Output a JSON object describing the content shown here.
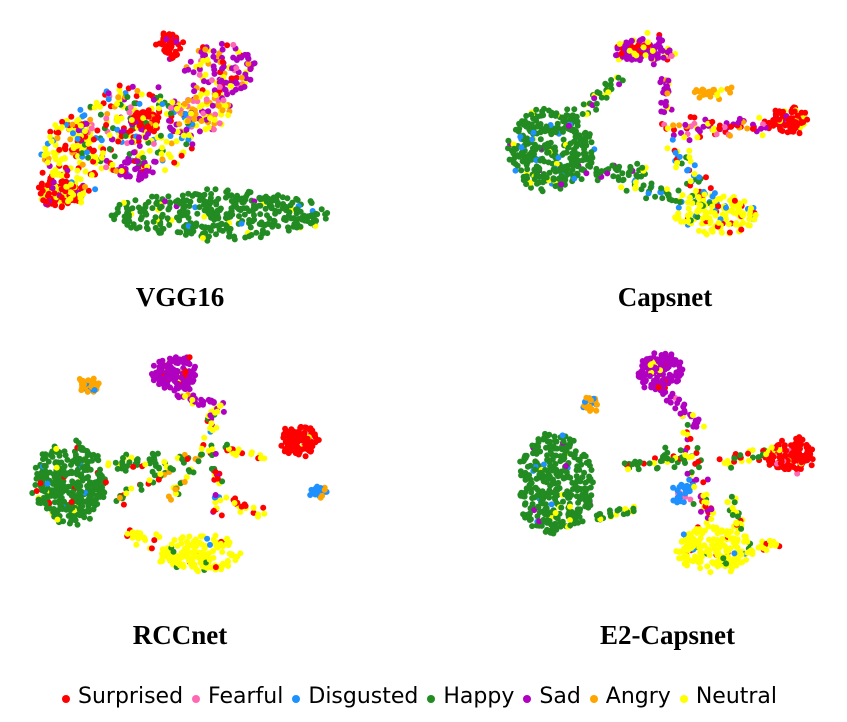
{
  "figure": {
    "panels": [
      {
        "caption": "VGG16"
      },
      {
        "caption": "Capsnet"
      },
      {
        "caption": "RCCnet"
      },
      {
        "caption": "E2-Capsnet"
      }
    ]
  },
  "legend": {
    "items": [
      {
        "label": "Surprised",
        "color": "#ff0000"
      },
      {
        "label": "Fearful",
        "color": "#ff69b4"
      },
      {
        "label": "Disgusted",
        "color": "#1e90ff"
      },
      {
        "label": "Happy",
        "color": "#228b22"
      },
      {
        "label": "Sad",
        "color": "#b000c0"
      },
      {
        "label": "Angry",
        "color": "#ffa500"
      },
      {
        "label": "Neutral",
        "color": "#ffff00"
      }
    ]
  },
  "chart_data": [
    {
      "type": "scatter",
      "title": "VGG16",
      "series": [
        {
          "name": "Surprised",
          "color": "#ff0000"
        },
        {
          "name": "Fearful",
          "color": "#ff69b4"
        },
        {
          "name": "Disgusted",
          "color": "#1e90ff"
        },
        {
          "name": "Happy",
          "color": "#228b22"
        },
        {
          "name": "Sad",
          "color": "#b000c0"
        },
        {
          "name": "Angry",
          "color": "#ffa500"
        },
        {
          "name": "Neutral",
          "color": "#ffff00"
        }
      ]
    },
    {
      "type": "scatter",
      "title": "Capsnet",
      "series": [
        {
          "name": "Surprised",
          "color": "#ff0000"
        },
        {
          "name": "Fearful",
          "color": "#ff69b4"
        },
        {
          "name": "Disgusted",
          "color": "#1e90ff"
        },
        {
          "name": "Happy",
          "color": "#228b22"
        },
        {
          "name": "Sad",
          "color": "#b000c0"
        },
        {
          "name": "Angry",
          "color": "#ffa500"
        },
        {
          "name": "Neutral",
          "color": "#ffff00"
        }
      ]
    },
    {
      "type": "scatter",
      "title": "RCCnet",
      "series": [
        {
          "name": "Surprised",
          "color": "#ff0000"
        },
        {
          "name": "Fearful",
          "color": "#ff69b4"
        },
        {
          "name": "Disgusted",
          "color": "#1e90ff"
        },
        {
          "name": "Happy",
          "color": "#228b22"
        },
        {
          "name": "Sad",
          "color": "#b000c0"
        },
        {
          "name": "Angry",
          "color": "#ffa500"
        },
        {
          "name": "Neutral",
          "color": "#ffff00"
        }
      ]
    },
    {
      "type": "scatter",
      "title": "E2-Capsnet",
      "series": [
        {
          "name": "Surprised",
          "color": "#ff0000"
        },
        {
          "name": "Fearful",
          "color": "#ff69b4"
        },
        {
          "name": "Disgusted",
          "color": "#1e90ff"
        },
        {
          "name": "Happy",
          "color": "#228b22"
        },
        {
          "name": "Sad",
          "color": "#b000c0"
        },
        {
          "name": "Angry",
          "color": "#ffa500"
        },
        {
          "name": "Neutral",
          "color": "#ffff00"
        }
      ]
    }
  ]
}
